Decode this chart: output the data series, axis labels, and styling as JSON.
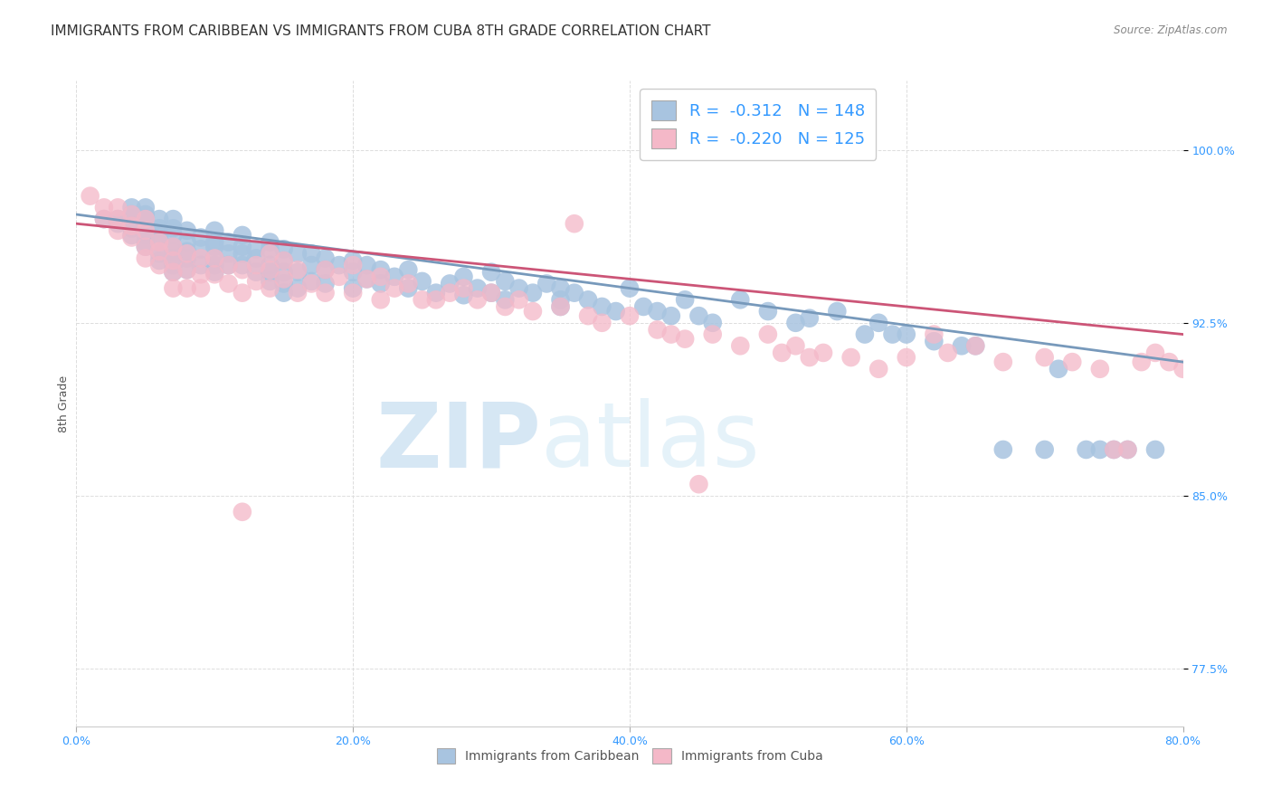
{
  "title": "IMMIGRANTS FROM CARIBBEAN VS IMMIGRANTS FROM CUBA 8TH GRADE CORRELATION CHART",
  "source_text": "Source: ZipAtlas.com",
  "ylabel": "8th Grade",
  "xlim": [
    0.0,
    0.8
  ],
  "ylim": [
    0.75,
    1.03
  ],
  "xtick_labels": [
    "0.0%",
    "20.0%",
    "40.0%",
    "60.0%",
    "80.0%"
  ],
  "xtick_vals": [
    0.0,
    0.2,
    0.4,
    0.6,
    0.8
  ],
  "ytick_labels": [
    "77.5%",
    "85.0%",
    "92.5%",
    "100.0%"
  ],
  "ytick_vals": [
    0.775,
    0.85,
    0.925,
    1.0
  ],
  "legend_line1": "R =  -0.312   N = 148",
  "legend_line2": "R =  -0.220   N = 125",
  "blue_color": "#a8c4e0",
  "pink_color": "#f4b8c8",
  "blue_line_color": "#7799bb",
  "pink_line_color": "#cc5577",
  "watermark_zip": "ZIP",
  "watermark_atlas": "atlas",
  "watermark_color_zip": "#c5ddf0",
  "watermark_color_atlas": "#d0e8f5",
  "background_color": "#ffffff",
  "title_fontsize": 11,
  "axis_label_fontsize": 9,
  "tick_fontsize": 9,
  "tick_color": "#3399ff",
  "blue_scatter_x": [
    0.02,
    0.03,
    0.03,
    0.04,
    0.04,
    0.04,
    0.04,
    0.04,
    0.04,
    0.05,
    0.05,
    0.05,
    0.05,
    0.05,
    0.05,
    0.05,
    0.05,
    0.06,
    0.06,
    0.06,
    0.06,
    0.06,
    0.06,
    0.07,
    0.07,
    0.07,
    0.07,
    0.07,
    0.07,
    0.07,
    0.07,
    0.08,
    0.08,
    0.08,
    0.08,
    0.08,
    0.09,
    0.09,
    0.09,
    0.1,
    0.1,
    0.1,
    0.1,
    0.1,
    0.1,
    0.11,
    0.11,
    0.11,
    0.12,
    0.12,
    0.12,
    0.12,
    0.13,
    0.13,
    0.13,
    0.14,
    0.14,
    0.14,
    0.14,
    0.14,
    0.15,
    0.15,
    0.15,
    0.15,
    0.15,
    0.16,
    0.16,
    0.16,
    0.17,
    0.17,
    0.17,
    0.18,
    0.18,
    0.18,
    0.19,
    0.2,
    0.2,
    0.2,
    0.21,
    0.21,
    0.22,
    0.22,
    0.23,
    0.24,
    0.24,
    0.25,
    0.26,
    0.27,
    0.28,
    0.28,
    0.29,
    0.3,
    0.3,
    0.31,
    0.31,
    0.32,
    0.33,
    0.34,
    0.35,
    0.35,
    0.35,
    0.36,
    0.37,
    0.38,
    0.39,
    0.4,
    0.41,
    0.42,
    0.43,
    0.44,
    0.45,
    0.46,
    0.48,
    0.5,
    0.52,
    0.53,
    0.55,
    0.57,
    0.58,
    0.59,
    0.6,
    0.62,
    0.64,
    0.65,
    0.67,
    0.7,
    0.71,
    0.73,
    0.74,
    0.75,
    0.76,
    0.78
  ],
  "blue_scatter_y": [
    0.97,
    0.97,
    0.968,
    0.975,
    0.972,
    0.97,
    0.968,
    0.966,
    0.963,
    0.975,
    0.972,
    0.97,
    0.968,
    0.966,
    0.963,
    0.96,
    0.958,
    0.97,
    0.966,
    0.963,
    0.96,
    0.955,
    0.952,
    0.97,
    0.966,
    0.963,
    0.958,
    0.956,
    0.953,
    0.95,
    0.947,
    0.965,
    0.96,
    0.956,
    0.953,
    0.948,
    0.962,
    0.957,
    0.95,
    0.965,
    0.96,
    0.958,
    0.953,
    0.95,
    0.947,
    0.96,
    0.955,
    0.95,
    0.963,
    0.958,
    0.955,
    0.95,
    0.957,
    0.953,
    0.947,
    0.96,
    0.957,
    0.95,
    0.947,
    0.943,
    0.957,
    0.952,
    0.947,
    0.942,
    0.938,
    0.955,
    0.947,
    0.94,
    0.955,
    0.95,
    0.943,
    0.953,
    0.948,
    0.942,
    0.95,
    0.952,
    0.947,
    0.94,
    0.95,
    0.944,
    0.948,
    0.942,
    0.945,
    0.948,
    0.94,
    0.943,
    0.938,
    0.942,
    0.945,
    0.937,
    0.94,
    0.947,
    0.938,
    0.943,
    0.935,
    0.94,
    0.938,
    0.942,
    0.94,
    0.935,
    0.932,
    0.938,
    0.935,
    0.932,
    0.93,
    0.94,
    0.932,
    0.93,
    0.928,
    0.935,
    0.928,
    0.925,
    0.935,
    0.93,
    0.925,
    0.927,
    0.93,
    0.92,
    0.925,
    0.92,
    0.92,
    0.917,
    0.915,
    0.915,
    0.87,
    0.87,
    0.905,
    0.87,
    0.87,
    0.87,
    0.87,
    0.87
  ],
  "pink_scatter_x": [
    0.01,
    0.02,
    0.02,
    0.03,
    0.03,
    0.03,
    0.04,
    0.04,
    0.04,
    0.05,
    0.05,
    0.05,
    0.05,
    0.06,
    0.06,
    0.06,
    0.07,
    0.07,
    0.07,
    0.07,
    0.08,
    0.08,
    0.08,
    0.09,
    0.09,
    0.09,
    0.1,
    0.1,
    0.11,
    0.11,
    0.12,
    0.12,
    0.12,
    0.13,
    0.13,
    0.14,
    0.14,
    0.14,
    0.15,
    0.15,
    0.16,
    0.16,
    0.17,
    0.18,
    0.18,
    0.19,
    0.2,
    0.2,
    0.21,
    0.22,
    0.22,
    0.23,
    0.24,
    0.25,
    0.26,
    0.27,
    0.28,
    0.29,
    0.3,
    0.31,
    0.32,
    0.33,
    0.35,
    0.36,
    0.37,
    0.38,
    0.4,
    0.42,
    0.43,
    0.44,
    0.45,
    0.46,
    0.48,
    0.5,
    0.51,
    0.52,
    0.53,
    0.54,
    0.56,
    0.58,
    0.6,
    0.62,
    0.63,
    0.65,
    0.67,
    0.7,
    0.72,
    0.74,
    0.75,
    0.76,
    0.77,
    0.78,
    0.79,
    0.8
  ],
  "pink_scatter_y": [
    0.98,
    0.975,
    0.97,
    0.975,
    0.97,
    0.965,
    0.972,
    0.967,
    0.962,
    0.97,
    0.965,
    0.958,
    0.953,
    0.96,
    0.956,
    0.95,
    0.958,
    0.952,
    0.947,
    0.94,
    0.955,
    0.948,
    0.94,
    0.953,
    0.946,
    0.94,
    0.953,
    0.946,
    0.95,
    0.942,
    0.948,
    0.843,
    0.938,
    0.95,
    0.943,
    0.955,
    0.948,
    0.94,
    0.952,
    0.944,
    0.948,
    0.938,
    0.942,
    0.948,
    0.938,
    0.945,
    0.95,
    0.938,
    0.944,
    0.945,
    0.935,
    0.94,
    0.942,
    0.935,
    0.935,
    0.938,
    0.94,
    0.935,
    0.938,
    0.932,
    0.935,
    0.93,
    0.932,
    0.968,
    0.928,
    0.925,
    0.928,
    0.922,
    0.92,
    0.918,
    0.855,
    0.92,
    0.915,
    0.92,
    0.912,
    0.915,
    0.91,
    0.912,
    0.91,
    0.905,
    0.91,
    0.92,
    0.912,
    0.915,
    0.908,
    0.91,
    0.908,
    0.905,
    0.87,
    0.87,
    0.908,
    0.912,
    0.908,
    0.905
  ],
  "blue_trend_x0": 0.0,
  "blue_trend_y0": 0.972,
  "blue_trend_x1": 0.8,
  "blue_trend_y1": 0.908,
  "pink_trend_x0": 0.0,
  "pink_trend_y0": 0.968,
  "pink_trend_x1": 0.8,
  "pink_trend_y1": 0.92
}
